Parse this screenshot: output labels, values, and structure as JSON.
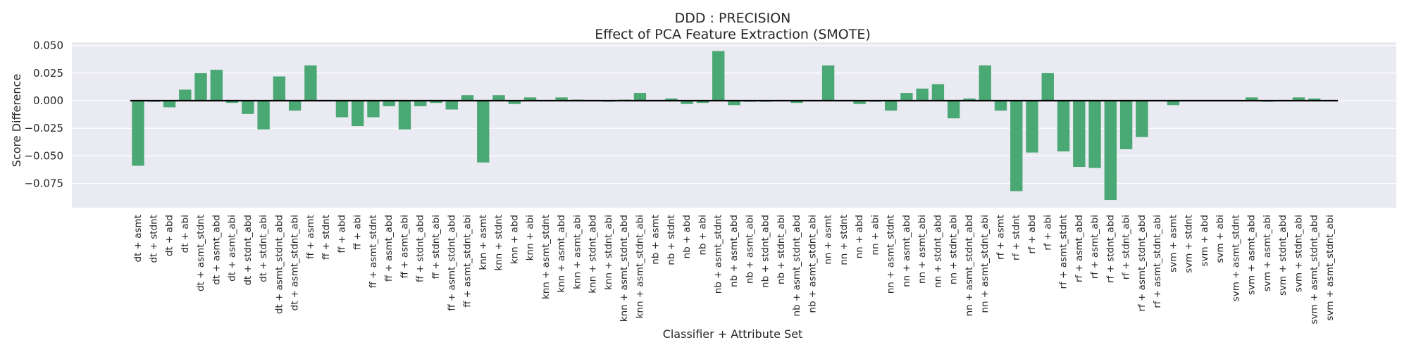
{
  "chart_data": {
    "type": "bar",
    "title": "DDD : PRECISION",
    "subtitle": "Effect of PCA Feature Extraction (SMOTE)",
    "xlabel": "Classifier + Attribute Set",
    "ylabel": "Score Difference",
    "ylim": [
      -0.097,
      0.053
    ],
    "yticks": [
      0.05,
      0.025,
      0.0,
      -0.025,
      -0.05,
      -0.075
    ],
    "ytick_labels": [
      "0.050",
      "0.025",
      "0.000",
      "−0.025",
      "−0.050",
      "−0.075"
    ],
    "grid": true,
    "bar_color": "#4aa874",
    "background_color": "#eaeaf2",
    "zero_line_color": "#000000",
    "categories": [
      "dt + asmt",
      "dt + stdnt",
      "dt + abd",
      "dt + abi",
      "dt + asmt_stdnt",
      "dt + asmt_abd",
      "dt + asmt_abi",
      "dt + stdnt_abd",
      "dt + stdnt_abi",
      "dt + asmt_stdnt_abd",
      "dt + asmt_stdnt_abi",
      "ff + asmt",
      "ff + stdnt",
      "ff + abd",
      "ff + abi",
      "ff + asmt_stdnt",
      "ff + asmt_abd",
      "ff + asmt_abi",
      "ff + stdnt_abd",
      "ff + stdnt_abi",
      "ff + asmt_stdnt_abd",
      "ff + asmt_stdnt_abi",
      "knn + asmt",
      "knn + stdnt",
      "knn + abd",
      "knn + abi",
      "knn + asmt_stdnt",
      "knn + asmt_abd",
      "knn + asmt_abi",
      "knn + stdnt_abd",
      "knn + stdnt_abi",
      "knn + asmt_stdnt_abd",
      "knn + asmt_stdnt_abi",
      "nb + asmt",
      "nb + stdnt",
      "nb + abd",
      "nb + abi",
      "nb + asmt_stdnt",
      "nb + asmt_abd",
      "nb + asmt_abi",
      "nb + stdnt_abd",
      "nb + stdnt_abi",
      "nb + asmt_stdnt_abd",
      "nb + asmt_stdnt_abi",
      "nn + asmt",
      "nn + stdnt",
      "nn + abd",
      "nn + abi",
      "nn + asmt_stdnt",
      "nn + asmt_abd",
      "nn + asmt_abi",
      "nn + stdnt_abd",
      "nn + stdnt_abi",
      "nn + asmt_stdnt_abd",
      "nn + asmt_stdnt_abi",
      "rf + asmt",
      "rf + stdnt",
      "rf + abd",
      "rf + abi",
      "rf + asmt_stdnt",
      "rf + asmt_abd",
      "rf + asmt_abi",
      "rf + stdnt_abd",
      "rf + stdnt_abi",
      "rf + asmt_stdnt_abd",
      "rf + asmt_stdnt_abi",
      "svm + asmt",
      "svm + stdnt",
      "svm + abd",
      "svm + abi",
      "svm + asmt_stdnt",
      "svm + asmt_abd",
      "svm + asmt_abi",
      "svm + stdnt_abd",
      "svm + stdnt_abi",
      "svm + asmt_stdnt_abd",
      "svm + asmt_stdnt_abi"
    ],
    "values": [
      -0.059,
      -0.001,
      -0.006,
      0.01,
      0.025,
      0.028,
      -0.002,
      -0.012,
      -0.026,
      0.022,
      -0.009,
      0.032,
      0.0,
      -0.015,
      -0.023,
      -0.015,
      -0.005,
      -0.026,
      -0.005,
      -0.002,
      -0.008,
      0.005,
      -0.056,
      0.005,
      -0.003,
      0.003,
      0.0,
      0.003,
      0.001,
      0.0,
      -0.001,
      0.001,
      0.007,
      0.0,
      0.002,
      -0.003,
      -0.002,
      0.045,
      -0.004,
      -0.001,
      -0.001,
      0.0,
      -0.002,
      0.0,
      0.032,
      0.0,
      -0.003,
      -0.001,
      -0.009,
      0.007,
      0.011,
      0.015,
      -0.016,
      0.002,
      0.032,
      -0.009,
      -0.082,
      -0.047,
      0.025,
      -0.046,
      -0.06,
      -0.061,
      -0.09,
      -0.044,
      -0.033,
      0.0,
      -0.004,
      0.0,
      0.0,
      0.0,
      0.0,
      0.003,
      -0.001,
      0.0,
      0.003,
      0.002,
      0.0
    ]
  }
}
